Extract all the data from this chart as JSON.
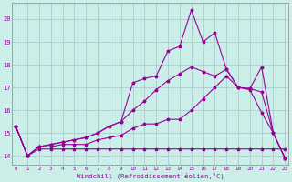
{
  "xlabel": "Windchill (Refroidissement éolien,°C)",
  "bg_color": "#cceee8",
  "grid_color": "#aacccc",
  "line_color": "#990099",
  "x_ticks": [
    0,
    1,
    2,
    3,
    4,
    5,
    6,
    7,
    8,
    9,
    10,
    11,
    12,
    13,
    14,
    15,
    16,
    17,
    18,
    19,
    20,
    21,
    22,
    23
  ],
  "y_ticks": [
    14,
    15,
    16,
    17,
    18,
    19,
    20
  ],
  "ylim": [
    13.6,
    20.7
  ],
  "xlim": [
    -0.3,
    23.3
  ],
  "series_peaked_x": [
    0,
    1,
    2,
    3,
    4,
    5,
    6,
    7,
    8,
    9,
    10,
    11,
    12,
    13,
    14,
    15,
    16,
    17,
    18,
    19,
    20,
    21,
    22,
    23
  ],
  "series_peaked_y": [
    15.3,
    14.0,
    14.4,
    14.5,
    14.6,
    14.7,
    14.8,
    15.0,
    15.3,
    15.5,
    17.2,
    17.4,
    17.5,
    18.6,
    18.8,
    20.4,
    19.0,
    19.4,
    17.8,
    17.0,
    16.95,
    17.9,
    15.0,
    13.9
  ],
  "series_mid_x": [
    0,
    1,
    2,
    3,
    4,
    5,
    6,
    7,
    8,
    9,
    10,
    11,
    12,
    13,
    14,
    15,
    16,
    17,
    18,
    19,
    20,
    21,
    22,
    23
  ],
  "series_mid_y": [
    15.3,
    14.0,
    14.4,
    14.5,
    14.6,
    14.7,
    14.8,
    15.0,
    15.3,
    15.5,
    16.0,
    16.4,
    16.9,
    17.3,
    17.6,
    17.9,
    17.7,
    17.5,
    17.8,
    17.0,
    16.95,
    16.8,
    15.0,
    13.9
  ],
  "series_diag_x": [
    0,
    1,
    2,
    3,
    4,
    5,
    6,
    7,
    8,
    9,
    10,
    11,
    12,
    13,
    14,
    15,
    16,
    17,
    18,
    19,
    20,
    21,
    22,
    23
  ],
  "series_diag_y": [
    15.3,
    14.0,
    14.4,
    14.4,
    14.5,
    14.5,
    14.5,
    14.7,
    14.8,
    14.9,
    15.2,
    15.4,
    15.4,
    15.6,
    15.6,
    16.0,
    16.5,
    17.0,
    17.5,
    17.0,
    16.9,
    15.9,
    15.0,
    13.9
  ],
  "series_flat_x": [
    0,
    1,
    2,
    3,
    4,
    5,
    6,
    7,
    8,
    9,
    10,
    11,
    12,
    13,
    14,
    15,
    16,
    17,
    18,
    19,
    20,
    21,
    22,
    23
  ],
  "series_flat_y": [
    15.3,
    14.0,
    14.3,
    14.3,
    14.3,
    14.3,
    14.3,
    14.3,
    14.3,
    14.3,
    14.3,
    14.3,
    14.3,
    14.3,
    14.3,
    14.3,
    14.3,
    14.3,
    14.3,
    14.3,
    14.3,
    14.3,
    14.3,
    14.3
  ]
}
